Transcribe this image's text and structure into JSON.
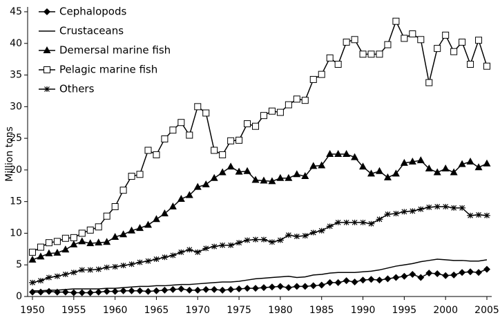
{
  "chart_data": {
    "type": "line",
    "ylabel": "Million tons",
    "x": [
      1950,
      1951,
      1952,
      1953,
      1954,
      1955,
      1956,
      1957,
      1958,
      1959,
      1960,
      1961,
      1962,
      1963,
      1964,
      1965,
      1966,
      1967,
      1968,
      1969,
      1970,
      1971,
      1972,
      1973,
      1974,
      1975,
      1976,
      1977,
      1978,
      1979,
      1980,
      1981,
      1982,
      1983,
      1984,
      1985,
      1986,
      1987,
      1988,
      1989,
      1990,
      1991,
      1992,
      1993,
      1994,
      1995,
      1996,
      1997,
      1998,
      1999,
      2000,
      2001,
      2002,
      2003,
      2004,
      2005
    ],
    "xlim": [
      1950,
      2005
    ],
    "xticks": [
      1950,
      1955,
      1960,
      1965,
      1970,
      1975,
      1980,
      1985,
      1990,
      1995,
      2000,
      2005
    ],
    "ylim": [
      0,
      45
    ],
    "yticks": [
      0,
      5,
      10,
      15,
      20,
      25,
      30,
      35,
      40,
      45
    ],
    "legend": "upper left",
    "series": [
      {
        "name": "Cephalopods",
        "color": "#000000",
        "marker": "diamond",
        "values": [
          0.7,
          0.7,
          0.8,
          0.7,
          0.7,
          0.6,
          0.6,
          0.6,
          0.7,
          0.8,
          0.8,
          0.9,
          0.9,
          0.9,
          0.8,
          0.9,
          1.0,
          1.1,
          1.2,
          1.0,
          1.0,
          1.1,
          1.1,
          1.0,
          1.1,
          1.2,
          1.3,
          1.3,
          1.4,
          1.5,
          1.6,
          1.4,
          1.6,
          1.6,
          1.7,
          1.8,
          2.2,
          2.2,
          2.5,
          2.3,
          2.6,
          2.7,
          2.6,
          2.8,
          3.0,
          3.2,
          3.5,
          3.0,
          3.7,
          3.6,
          3.3,
          3.4,
          3.8,
          3.9,
          3.8,
          4.3
        ]
      },
      {
        "name": "Crustaceans",
        "color": "#000000",
        "marker": "none",
        "values": [
          0.9,
          0.9,
          1.0,
          1.0,
          1.1,
          1.2,
          1.2,
          1.2,
          1.2,
          1.3,
          1.3,
          1.4,
          1.5,
          1.6,
          1.6,
          1.7,
          1.7,
          1.8,
          1.9,
          1.9,
          2.0,
          2.1,
          2.2,
          2.3,
          2.3,
          2.4,
          2.6,
          2.8,
          2.9,
          3.0,
          3.1,
          3.2,
          3.0,
          3.1,
          3.4,
          3.5,
          3.7,
          3.8,
          3.8,
          3.8,
          3.9,
          4.0,
          4.2,
          4.5,
          4.8,
          5.0,
          5.2,
          5.5,
          5.7,
          5.9,
          5.8,
          5.7,
          5.7,
          5.6,
          5.6,
          5.8
        ]
      },
      {
        "name": "Demersal marine fish",
        "color": "#000000",
        "marker": "triangle",
        "values": [
          5.8,
          6.3,
          6.8,
          6.9,
          7.4,
          8.2,
          8.7,
          8.4,
          8.5,
          8.6,
          9.4,
          9.8,
          10.4,
          10.8,
          11.3,
          12.2,
          13.1,
          14.2,
          15.4,
          16.0,
          17.3,
          17.7,
          18.7,
          19.6,
          20.5,
          19.7,
          19.8,
          18.4,
          18.3,
          18.2,
          18.7,
          18.7,
          19.3,
          19.0,
          20.6,
          20.7,
          22.5,
          22.5,
          22.5,
          22.0,
          20.5,
          19.4,
          19.8,
          18.8,
          19.4,
          21.1,
          21.3,
          21.5,
          20.2,
          19.6,
          20.2,
          19.6,
          20.9,
          21.3,
          20.4,
          21.0
        ]
      },
      {
        "name": "Pelagic marine fish",
        "color": "#000000",
        "marker": "square",
        "values": [
          7.0,
          7.8,
          8.5,
          8.7,
          9.2,
          9.3,
          10.0,
          10.5,
          11.0,
          12.7,
          14.2,
          16.8,
          19.0,
          19.3,
          23.1,
          22.4,
          24.9,
          26.3,
          27.5,
          25.5,
          30.0,
          29.0,
          23.1,
          22.4,
          24.6,
          24.7,
          27.3,
          26.9,
          28.6,
          29.3,
          29.1,
          30.3,
          31.2,
          31.0,
          34.3,
          35.1,
          37.7,
          36.7,
          40.2,
          40.6,
          38.3,
          38.3,
          38.3,
          39.8,
          43.5,
          40.8,
          41.5,
          40.6,
          33.8,
          39.2,
          41.3,
          38.7,
          40.2,
          36.7,
          40.5,
          36.4
        ]
      },
      {
        "name": "Others",
        "color": "#000000",
        "marker": "asterisk",
        "values": [
          2.2,
          2.5,
          3.0,
          3.2,
          3.5,
          3.8,
          4.2,
          4.2,
          4.3,
          4.6,
          4.7,
          4.9,
          5.1,
          5.4,
          5.6,
          5.9,
          6.2,
          6.5,
          7.0,
          7.4,
          7.0,
          7.6,
          7.9,
          8.1,
          8.1,
          8.5,
          8.9,
          9.0,
          9.0,
          8.6,
          8.9,
          9.7,
          9.5,
          9.6,
          10.1,
          10.4,
          11.1,
          11.7,
          11.7,
          11.7,
          11.7,
          11.5,
          12.2,
          13.0,
          13.1,
          13.4,
          13.5,
          13.8,
          14.1,
          14.2,
          14.2,
          14.0,
          14.0,
          12.8,
          12.9,
          12.8
        ]
      }
    ]
  }
}
